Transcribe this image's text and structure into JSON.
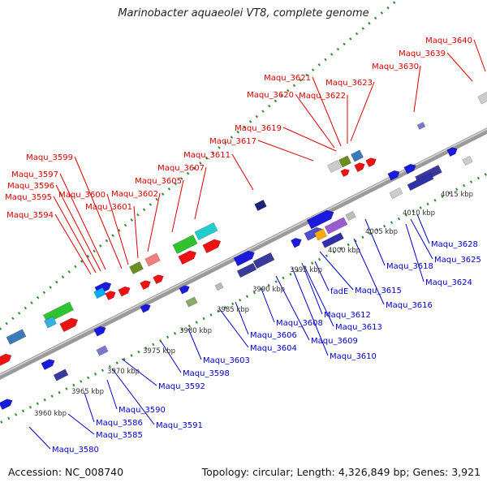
{
  "title": "Marinobacter aquaeolei VT8, complete genome",
  "footer": {
    "accession": "Accession: NC_008740",
    "summary": "Topology: circular; Length: 4,326,849 bp; Genes: 3,921"
  },
  "colors": {
    "forward_label": "#dd0000",
    "reverse_label": "#0000cc",
    "backbone": "#9a9a9a",
    "tick_line": "#2e8b2e"
  },
  "scale": {
    "ticks": [
      "3960 kbp",
      "3965 kbp",
      "3970 kbp",
      "3975 kbp",
      "3980 kbp",
      "3985 kbp",
      "3990 kbp",
      "3995 kbp",
      "4000 kbp",
      "4005 kbp",
      "4010 kbp",
      "4015 kbp"
    ]
  },
  "forward_labels": [
    "Maqu_3594",
    "Maqu_3595",
    "Maqu_3596",
    "Maqu_3597",
    "Maqu_3599",
    "Maqu_3600",
    "Maqu_3601",
    "Maqu_3602",
    "Maqu_3605",
    "Maqu_3607",
    "Maqu_3611",
    "Maqu_3617",
    "Maqu_3619",
    "Maqu_3620",
    "Maqu_3621",
    "Maqu_3622",
    "Maqu_3623",
    "Maqu_3630",
    "Maqu_3639",
    "Maqu_3640"
  ],
  "reverse_labels": [
    "Maqu_3580",
    "Maqu_3585",
    "Maqu_3586",
    "Maqu_3590",
    "Maqu_3591",
    "Maqu_3592",
    "Maqu_3598",
    "Maqu_3603",
    "Maqu_3604",
    "Maqu_3606",
    "Maqu_3608",
    "Maqu_3609",
    "Maqu_3610",
    "Maqu_3612",
    "Maqu_3613",
    "Maqu_3615",
    "fadE",
    "Maqu_3616",
    "Maqu_3618",
    "Maqu_3624",
    "Maqu_3625",
    "Maqu_3628"
  ]
}
